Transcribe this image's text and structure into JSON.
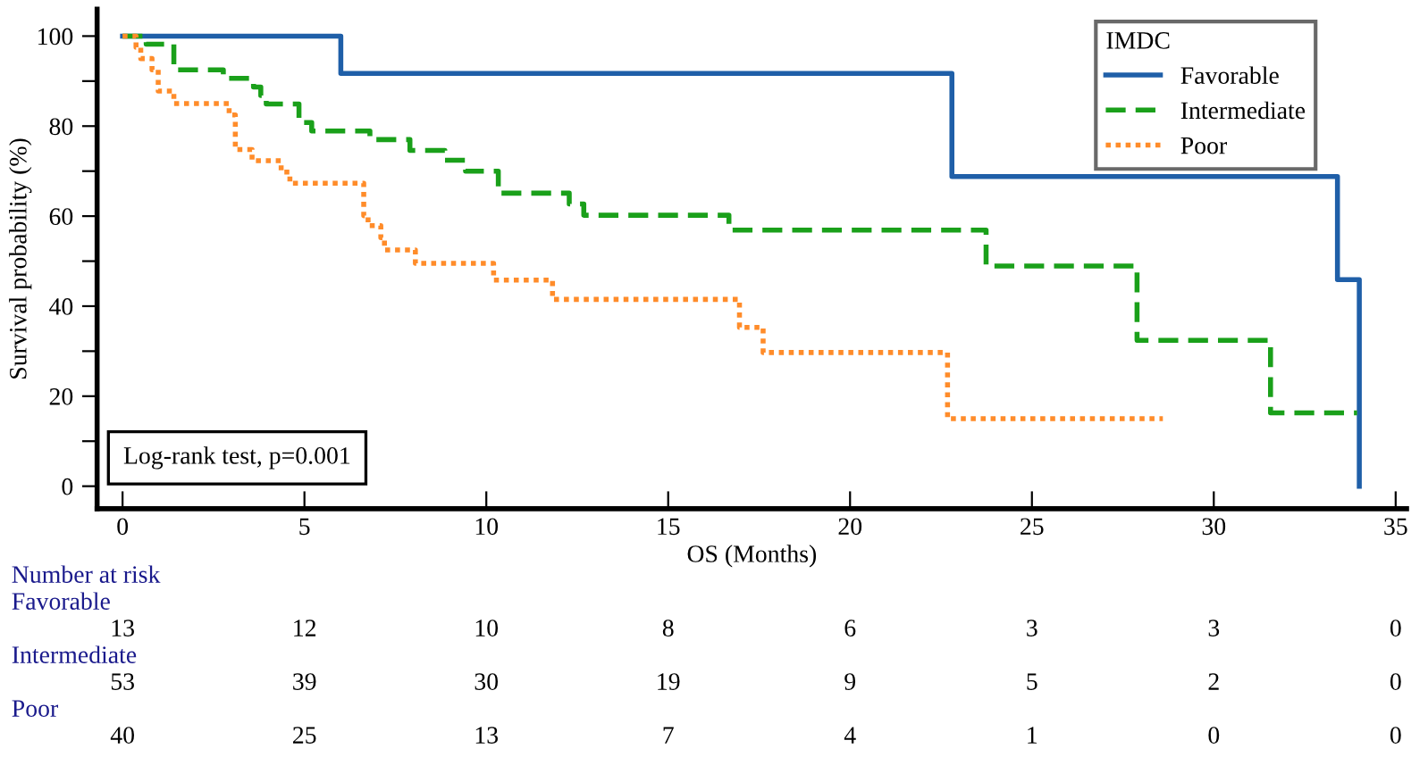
{
  "chart_data": {
    "type": "step",
    "xlabel": "OS (Months)",
    "ylabel": "Survival probability (%)",
    "legend_title": "IMDC",
    "legend": "top right",
    "xlim": [
      -0.7,
      35.3
    ],
    "ylim": [
      -5,
      106
    ],
    "xticks": [
      0,
      5,
      10,
      15,
      20,
      25,
      30,
      35
    ],
    "yticks": [
      0,
      {
        "value": 10,
        "label": null
      },
      20,
      {
        "value": 30,
        "label": null
      },
      40,
      {
        "value": 50,
        "label": null
      },
      60,
      {
        "value": 70,
        "label": null
      },
      80,
      {
        "value": 90,
        "label": null
      },
      100
    ],
    "grid": false,
    "series": [
      {
        "name": "Favorable",
        "color": "#1f5fa8",
        "line_style": "solid",
        "x": [
          0,
          6.0,
          22.8,
          33.4,
          34.0
        ],
        "values": [
          100,
          91.7,
          68.8,
          45.9,
          0
        ]
      },
      {
        "name": "Intermediate",
        "color": "#1aa01a",
        "line_style": "dashed",
        "x": [
          0,
          0.65,
          1.41,
          2.77,
          3.6,
          3.8,
          3.95,
          4.85,
          5.2,
          6.8,
          7.9,
          8.86,
          9.43,
          10.33,
          12.28,
          12.68,
          16.67,
          23.74,
          27.89,
          31.56,
          33.94
        ],
        "values": [
          100,
          98.2,
          92.5,
          90.6,
          88.7,
          86.8,
          84.9,
          80.8,
          78.9,
          77.0,
          74.6,
          72.4,
          70.0,
          65.1,
          62.7,
          60.2,
          56.9,
          48.9,
          32.4,
          16.3,
          16.3
        ]
      },
      {
        "name": "Poor",
        "color": "#ff8c2a",
        "line_style": "dotted",
        "x": [
          0,
          0.37,
          0.5,
          0.81,
          0.98,
          1.41,
          2.93,
          3.1,
          3.56,
          4.36,
          4.6,
          6.63,
          6.75,
          7.1,
          7.2,
          8.05,
          10.2,
          11.82,
          16.96,
          17.61,
          22.68,
          28.6
        ],
        "values": [
          100,
          97.5,
          95.0,
          92.5,
          87.8,
          85.0,
          82.5,
          74.8,
          72.3,
          69.8,
          67.3,
          60.1,
          57.9,
          55.2,
          52.5,
          49.5,
          45.8,
          41.5,
          35.3,
          29.7,
          15.0,
          15.0
        ]
      }
    ],
    "annotations": [
      "Log-rank test, p=0.001",
      "Number at risk",
      "Favorable",
      "13",
      "12",
      "10",
      "8",
      "6",
      "3",
      "3",
      "0",
      "Intermediate",
      "53",
      "39",
      "30",
      "19",
      "9",
      "5",
      "2",
      "0",
      "Poor",
      "40",
      "25",
      "13",
      "7",
      "4",
      "1",
      "0",
      "0"
    ]
  }
}
